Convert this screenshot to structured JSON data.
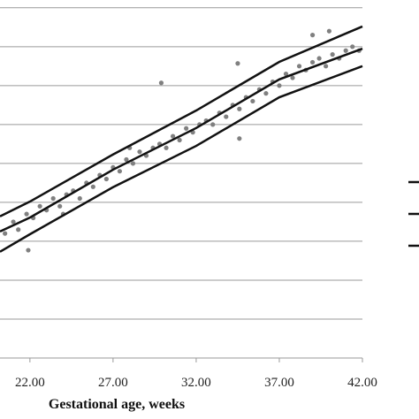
{
  "chart_data": {
    "type": "scatter",
    "x_label": "Gestational age, weeks",
    "xlim": [
      20.2,
      42
    ],
    "xticks": [
      {
        "value": 22,
        "label": "22.00"
      },
      {
        "value": 27,
        "label": "27.00"
      },
      {
        "value": 32,
        "label": "32.00"
      },
      {
        "value": 37,
        "label": "37.00"
      },
      {
        "value": 42,
        "label": "42.00"
      }
    ],
    "ylim": [
      0,
      9.2
    ],
    "ygrid": [
      1,
      2,
      3,
      4,
      5,
      6,
      7,
      8,
      9
    ],
    "grid": true,
    "point_color": "#808080",
    "points": {
      "x": [
        20.5,
        21,
        21.3,
        21.8,
        22.2,
        22.6,
        23,
        23.4,
        23.8,
        24.2,
        24.6,
        25,
        25.4,
        25.8,
        26.2,
        26.6,
        27,
        27.4,
        27.8,
        28.2,
        28.6,
        29,
        29.4,
        29.8,
        30.2,
        30.6,
        31,
        31.4,
        31.8,
        32.2,
        32.6,
        33,
        33.4,
        33.8,
        34.2,
        34.6,
        35,
        35.4,
        35.8,
        36.2,
        36.6,
        37,
        37.4,
        37.8,
        38.2,
        38.6,
        39,
        39.4,
        39.8,
        40.2,
        40.6,
        41,
        41.4,
        41.8,
        39,
        40,
        24,
        28,
        29.9,
        34.5,
        21.9,
        34.6
      ],
      "y": [
        3.2,
        3.5,
        3.3,
        3.7,
        3.6,
        3.9,
        3.8,
        4.1,
        3.9,
        4.2,
        4.3,
        4.1,
        4.5,
        4.4,
        4.7,
        4.6,
        4.9,
        4.8,
        5.1,
        5.0,
        5.3,
        5.2,
        5.4,
        5.5,
        5.4,
        5.7,
        5.6,
        5.9,
        5.8,
        6.0,
        6.1,
        6.0,
        6.3,
        6.2,
        6.5,
        6.4,
        6.7,
        6.6,
        6.9,
        6.8,
        7.1,
        7.0,
        7.3,
        7.2,
        7.5,
        7.4,
        7.6,
        7.7,
        7.5,
        7.8,
        7.7,
        7.9,
        8.0,
        7.9,
        8.3,
        8.4,
        3.7,
        5.4,
        7.07,
        7.57,
        2.77,
        5.64
      ]
    },
    "line_color": "#111111",
    "series": [
      {
        "x": [
          20.2,
          22,
          27,
          32,
          37,
          42
        ],
        "values": [
          3.64,
          4.02,
          5.23,
          6.36,
          7.61,
          8.52
        ]
      },
      {
        "x": [
          20.2,
          22,
          27,
          32,
          37,
          42
        ],
        "values": [
          3.25,
          3.61,
          4.84,
          5.91,
          7.16,
          7.95
        ]
      },
      {
        "x": [
          20.2,
          22,
          27,
          32,
          37,
          42
        ],
        "values": [
          2.73,
          3.18,
          4.39,
          5.45,
          6.7,
          7.5
        ]
      }
    ]
  }
}
